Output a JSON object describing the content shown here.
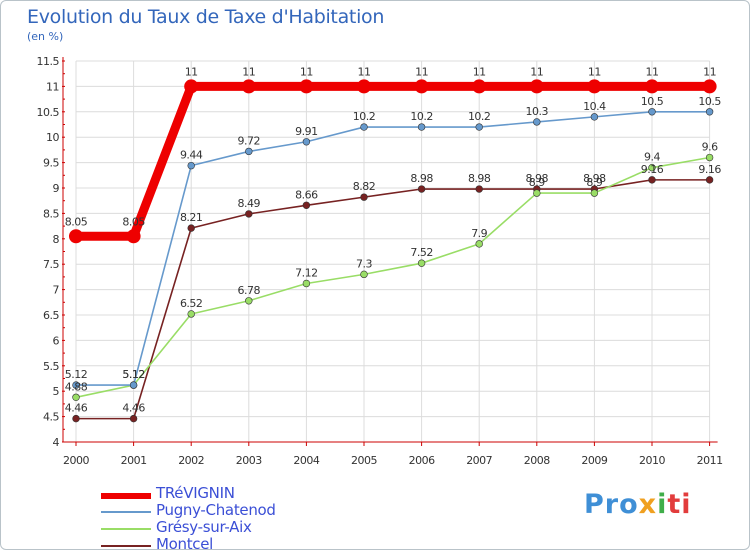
{
  "chart_data": {
    "type": "line",
    "title": "Evolution du Taux de Taxe d'Habitation",
    "subtitle": "(en %)",
    "xlabel": "",
    "ylabel": "",
    "categories": [
      "2000",
      "2001",
      "2002",
      "2003",
      "2004",
      "2005",
      "2006",
      "2007",
      "2008",
      "2009",
      "2010",
      "2011"
    ],
    "ylim": [
      4,
      11.5
    ],
    "yticks": [
      "4",
      "4.5",
      "5",
      "5.5",
      "6",
      "6.5",
      "7",
      "7.5",
      "8",
      "8.5",
      "9",
      "9.5",
      "10",
      "10.5",
      "11",
      "11.5"
    ],
    "grid": true,
    "series": [
      {
        "name": "TRéVIGNIN",
        "color": "#ee0000",
        "values": [
          8.05,
          8.05,
          11,
          11,
          11,
          11,
          11,
          11,
          11,
          11,
          11,
          11
        ],
        "labels": [
          "8.05",
          "8.05",
          "11",
          "11",
          "11",
          "11",
          "11",
          "11",
          "11",
          "11",
          "11",
          "11"
        ]
      },
      {
        "name": "Pugny-Chatenod",
        "color": "#6699cc",
        "values": [
          5.12,
          5.12,
          9.44,
          9.72,
          9.91,
          10.2,
          10.2,
          10.2,
          10.3,
          10.4,
          10.5,
          10.5
        ],
        "labels": [
          "5.12",
          "5.12",
          "9.44",
          "9.72",
          "9.91",
          "10.2",
          "10.2",
          "10.2",
          "10.3",
          "10.4",
          "10.5",
          "10.5"
        ]
      },
      {
        "name": "Grésy-sur-Aix",
        "color": "#99dd66",
        "values": [
          4.88,
          5.12,
          6.52,
          6.78,
          7.12,
          7.3,
          7.52,
          7.9,
          8.9,
          8.9,
          9.4,
          9.6
        ],
        "labels": [
          "4.88",
          "5.12",
          "6.52",
          "6.78",
          "7.12",
          "7.3",
          "7.52",
          "7.9",
          "8.9",
          "8.9",
          "9.4",
          "9.6"
        ]
      },
      {
        "name": "Montcel",
        "color": "#772222",
        "values": [
          4.46,
          4.46,
          8.21,
          8.49,
          8.66,
          8.82,
          8.98,
          8.98,
          8.98,
          8.98,
          9.16,
          9.16
        ],
        "labels": [
          "4.46",
          "4.46",
          "8.21",
          "8.49",
          "8.66",
          "8.82",
          "8.98",
          "8.98",
          "8.98",
          "8.98",
          "9.16",
          "9.16"
        ]
      }
    ]
  },
  "brand": {
    "part1": "Pro",
    "part2": "x",
    "part3": "i",
    "part4": "ti"
  }
}
